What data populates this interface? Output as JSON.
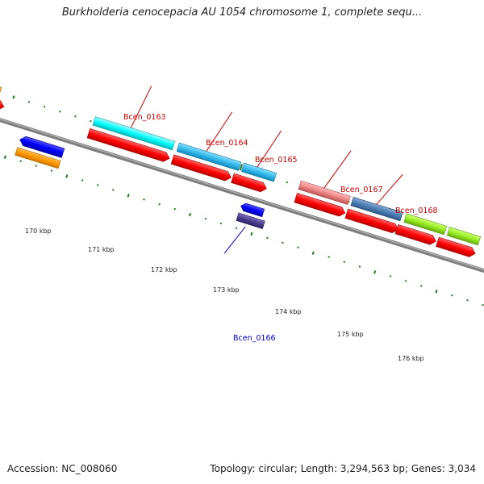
{
  "title": "Burkholderia cenocepacia AU 1054 chromosome 1, complete sequ...",
  "footer": {
    "accession": "Accession: NC_008060",
    "summary": "Topology: circular; Length: 3,294,563 bp; Genes: 3,034"
  },
  "colors": {
    "backbone": "#888888",
    "tick": "#1f7a1f",
    "label_red": "#cc0000",
    "label_blue": "#0000cc",
    "cds_forward": "#ff0000",
    "cds_orange": "#ff9900",
    "cds_blue": "#0000ff",
    "cds_cyan": "#00ffff",
    "cds_skyblue": "#33bbee",
    "cds_pink": "#ee8888",
    "cds_steel": "#4a7fb5",
    "cds_lime": "#99ee22",
    "cds_purple": "#4a3d8c"
  },
  "kbp_labels": [
    "170 kbp",
    "171 kbp",
    "172 kbp",
    "173 kbp",
    "174 kbp",
    "175 kbp",
    "176 kbp"
  ],
  "gene_labels": [
    {
      "text": "Bcen_0163",
      "color": "red"
    },
    {
      "text": "Bcen_0164",
      "color": "red"
    },
    {
      "text": "Bcen_0165",
      "color": "red"
    },
    {
      "text": "Bcen_0167",
      "color": "red"
    },
    {
      "text": "Bcen_0168",
      "color": "red"
    },
    {
      "text": "Bcen_0166",
      "color": "blue"
    }
  ]
}
